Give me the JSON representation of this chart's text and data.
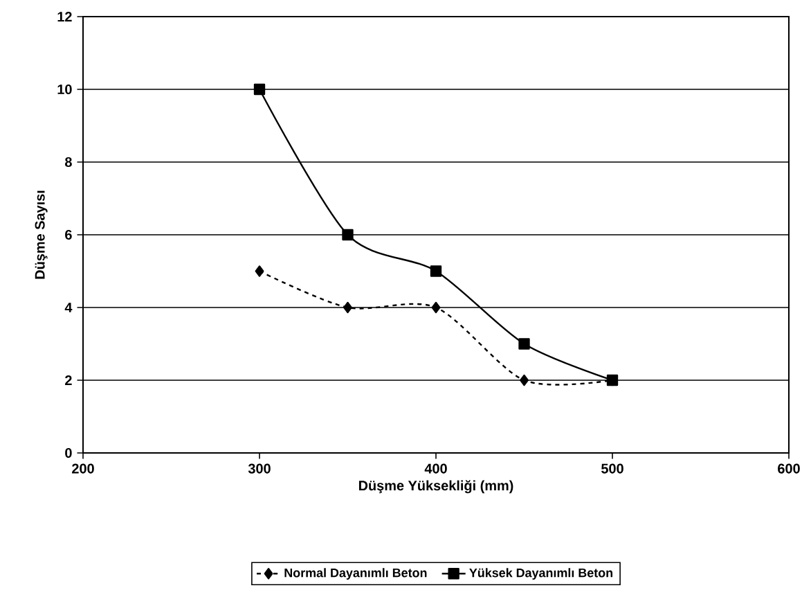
{
  "chart_data": {
    "type": "line",
    "xlabel": "Düşme Yüksekliği (mm)",
    "ylabel": "Düşme Sayısı",
    "x": [
      300,
      350,
      400,
      450,
      500
    ],
    "series": [
      {
        "name": "Normal Dayanımlı Beton",
        "color": "#000000",
        "values": [
          5,
          4,
          4,
          2,
          2
        ],
        "marker": "diamond",
        "line_style": "dashed"
      },
      {
        "name": "Yüksek Dayanımlı Beton",
        "color": "#000000",
        "values": [
          10,
          6,
          5,
          3,
          2
        ],
        "marker": "square",
        "line_style": "solid"
      }
    ],
    "xlim": [
      200,
      600
    ],
    "xticks": [
      200,
      300,
      400,
      500,
      600
    ],
    "ylim": [
      0,
      12
    ],
    "yticks": [
      0,
      2,
      4,
      6,
      8,
      10,
      12
    ],
    "grid": "y",
    "legend": "bottom"
  }
}
